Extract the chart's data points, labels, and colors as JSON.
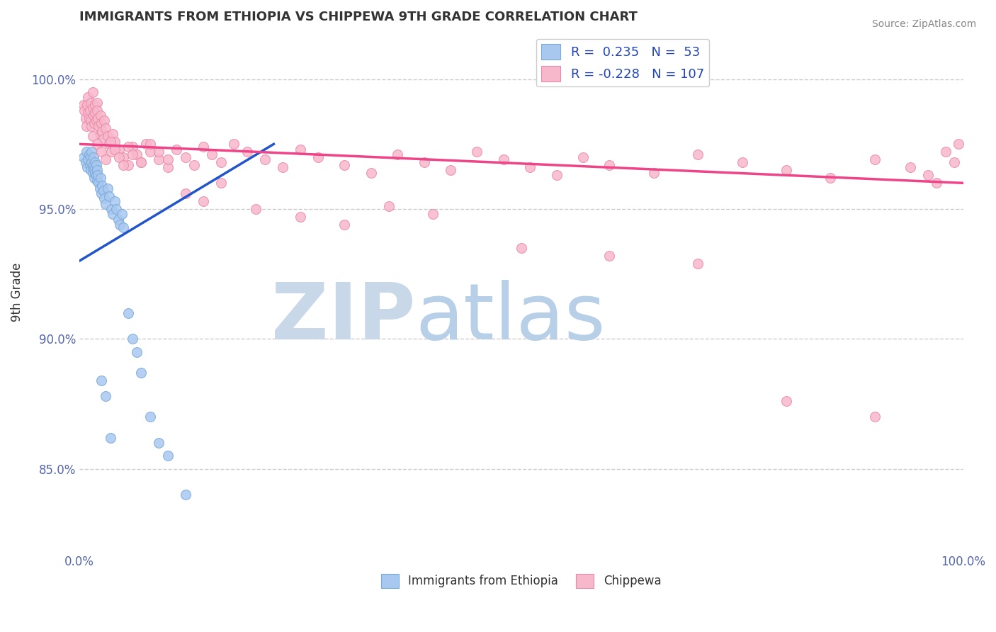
{
  "title": "IMMIGRANTS FROM ETHIOPIA VS CHIPPEWA 9TH GRADE CORRELATION CHART",
  "source_text": "Source: ZipAtlas.com",
  "ylabel": "9th Grade",
  "xticklabels": [
    "0.0%",
    "100.0%"
  ],
  "yticklabels": [
    "85.0%",
    "90.0%",
    "95.0%",
    "100.0%"
  ],
  "ytick_values": [
    0.85,
    0.9,
    0.95,
    1.0
  ],
  "xlim": [
    0.0,
    1.0
  ],
  "ylim": [
    0.818,
    1.018
  ],
  "title_color": "#333333",
  "title_fontsize": 13,
  "tick_color": "#5566aa",
  "grid_color": "#cccccc",
  "source_color": "#888888",
  "watermark_zip": "ZIP",
  "watermark_atlas": "atlas",
  "watermark_color_zip": "#c8d8e8",
  "watermark_color_atlas": "#b8cfe8",
  "legend1_label1": "R =  0.235   N =  53",
  "legend1_label2": "R = -0.228   N = 107",
  "legend_text_color": "#2244bb",
  "blue_color": "#a8c8f0",
  "blue_edge": "#7aaad8",
  "pink_color": "#f8b8cc",
  "pink_edge": "#e88aaa",
  "dot_size": 100,
  "blue_line_color": "#2255cc",
  "pink_line_color": "#ee4488",
  "blue_line": {
    "x0": 0.0,
    "y0": 0.93,
    "x1": 0.22,
    "y1": 0.975
  },
  "pink_line": {
    "x0": 0.0,
    "y0": 0.975,
    "x1": 1.0,
    "y1": 0.96
  },
  "blue_x": [
    0.005,
    0.007,
    0.008,
    0.009,
    0.01,
    0.011,
    0.012,
    0.013,
    0.013,
    0.014,
    0.014,
    0.015,
    0.015,
    0.016,
    0.016,
    0.017,
    0.017,
    0.018,
    0.018,
    0.019,
    0.019,
    0.02,
    0.02,
    0.021,
    0.022,
    0.023,
    0.024,
    0.025,
    0.026,
    0.027,
    0.028,
    0.03,
    0.032,
    0.034,
    0.036,
    0.038,
    0.04,
    0.042,
    0.044,
    0.046,
    0.048,
    0.05,
    0.055,
    0.06,
    0.065,
    0.07,
    0.08,
    0.09,
    0.1,
    0.12,
    0.025,
    0.03,
    0.035
  ],
  "blue_y": [
    0.97,
    0.968,
    0.972,
    0.966,
    0.969,
    0.971,
    0.967,
    0.965,
    0.97,
    0.968,
    0.972,
    0.966,
    0.964,
    0.97,
    0.967,
    0.965,
    0.962,
    0.968,
    0.964,
    0.967,
    0.963,
    0.965,
    0.961,
    0.963,
    0.96,
    0.958,
    0.962,
    0.956,
    0.959,
    0.957,
    0.954,
    0.952,
    0.958,
    0.955,
    0.95,
    0.948,
    0.953,
    0.95,
    0.946,
    0.944,
    0.948,
    0.943,
    0.91,
    0.9,
    0.895,
    0.887,
    0.87,
    0.86,
    0.855,
    0.84,
    0.884,
    0.878,
    0.862
  ],
  "pink_x": [
    0.005,
    0.006,
    0.007,
    0.008,
    0.009,
    0.01,
    0.01,
    0.011,
    0.012,
    0.013,
    0.013,
    0.014,
    0.015,
    0.015,
    0.016,
    0.017,
    0.018,
    0.018,
    0.019,
    0.02,
    0.02,
    0.021,
    0.022,
    0.023,
    0.024,
    0.025,
    0.026,
    0.027,
    0.028,
    0.03,
    0.032,
    0.034,
    0.036,
    0.038,
    0.04,
    0.045,
    0.05,
    0.055,
    0.06,
    0.065,
    0.07,
    0.075,
    0.08,
    0.09,
    0.1,
    0.11,
    0.12,
    0.13,
    0.14,
    0.15,
    0.16,
    0.175,
    0.19,
    0.21,
    0.23,
    0.25,
    0.27,
    0.3,
    0.33,
    0.36,
    0.39,
    0.42,
    0.45,
    0.48,
    0.51,
    0.54,
    0.57,
    0.6,
    0.65,
    0.7,
    0.75,
    0.8,
    0.85,
    0.9,
    0.94,
    0.96,
    0.97,
    0.98,
    0.99,
    0.995,
    0.015,
    0.02,
    0.025,
    0.03,
    0.035,
    0.04,
    0.045,
    0.05,
    0.055,
    0.06,
    0.07,
    0.08,
    0.09,
    0.1,
    0.12,
    0.14,
    0.16,
    0.2,
    0.25,
    0.3,
    0.35,
    0.4,
    0.5,
    0.6,
    0.7,
    0.8,
    0.9
  ],
  "pink_y": [
    0.99,
    0.988,
    0.985,
    0.982,
    0.99,
    0.987,
    0.993,
    0.985,
    0.988,
    0.984,
    0.991,
    0.982,
    0.989,
    0.995,
    0.986,
    0.983,
    0.99,
    0.987,
    0.984,
    0.991,
    0.988,
    0.985,
    0.982,
    0.979,
    0.986,
    0.983,
    0.98,
    0.977,
    0.984,
    0.981,
    0.978,
    0.975,
    0.972,
    0.979,
    0.976,
    0.973,
    0.97,
    0.967,
    0.974,
    0.971,
    0.968,
    0.975,
    0.972,
    0.969,
    0.966,
    0.973,
    0.97,
    0.967,
    0.974,
    0.971,
    0.968,
    0.975,
    0.972,
    0.969,
    0.966,
    0.973,
    0.97,
    0.967,
    0.964,
    0.971,
    0.968,
    0.965,
    0.972,
    0.969,
    0.966,
    0.963,
    0.97,
    0.967,
    0.964,
    0.971,
    0.968,
    0.965,
    0.962,
    0.969,
    0.966,
    0.963,
    0.96,
    0.972,
    0.968,
    0.975,
    0.978,
    0.975,
    0.972,
    0.969,
    0.976,
    0.973,
    0.97,
    0.967,
    0.974,
    0.971,
    0.968,
    0.975,
    0.972,
    0.969,
    0.956,
    0.953,
    0.96,
    0.95,
    0.947,
    0.944,
    0.951,
    0.948,
    0.935,
    0.932,
    0.929,
    0.876,
    0.87
  ]
}
